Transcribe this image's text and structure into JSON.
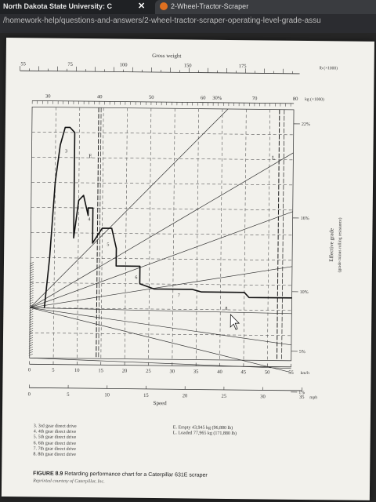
{
  "browser": {
    "tab_title": "North Dakota State University: C",
    "tab_close": "✕",
    "tab2_title": "2-Wheel-Tractor-Scraper",
    "url": "/homework-help/questions-and-answers/2-wheel-tractor-scraper-operating-level-grade-assu"
  },
  "chart_data": {
    "type": "line",
    "title": "Gross weight",
    "top_axis_lb": {
      "ticks": [
        "55",
        "75",
        "100",
        "150",
        "175"
      ],
      "unit": "lb (×1000)"
    },
    "top_axis_kg": {
      "ticks": [
        "30",
        "40",
        "50",
        "60",
        "70",
        "80"
      ],
      "unit": "kg (×1000)",
      "extra": "30%"
    },
    "grade_labels": [
      "22%",
      "16%",
      "10%",
      "5%",
      "1%"
    ],
    "right_axis_label": "Effective grade",
    "right_axis_sublabel": "(grade minus rolling resistance)",
    "x_kmh": {
      "ticks": [
        "0",
        "5",
        "10",
        "15",
        "20",
        "25",
        "30",
        "35",
        "40",
        "45",
        "50",
        "55"
      ],
      "unit": "km/h"
    },
    "x_mph": {
      "ticks": [
        "0",
        "5",
        "10",
        "15",
        "20",
        "25",
        "30",
        "35"
      ],
      "unit": "mph"
    },
    "xlabel": "Speed",
    "markers": [
      "E",
      "L"
    ],
    "gear_labels": [
      "3",
      "4",
      "5",
      "6",
      "7",
      "8"
    ],
    "curve_kmh": [
      [
        3,
        20
      ],
      [
        4,
        40
      ],
      [
        5,
        70
      ],
      [
        6,
        85
      ],
      [
        7,
        92
      ],
      [
        8,
        92
      ],
      [
        9,
        90
      ],
      [
        9,
        48
      ],
      [
        10,
        63
      ],
      [
        11,
        65
      ],
      [
        12,
        57
      ],
      [
        12,
        60
      ],
      [
        13,
        60
      ],
      [
        13,
        46
      ],
      [
        15,
        52
      ],
      [
        17,
        52
      ],
      [
        18,
        44
      ],
      [
        18,
        37
      ],
      [
        23,
        37
      ],
      [
        23,
        30
      ],
      [
        26,
        28
      ],
      [
        34,
        28
      ],
      [
        36,
        27
      ],
      [
        38,
        27
      ],
      [
        45,
        27
      ],
      [
        46,
        25
      ],
      [
        55,
        25
      ]
    ]
  },
  "legend": {
    "left": [
      "3. 3rd gear direct drive",
      "4. 4th gear direct drive",
      "5. 5th gear direct drive",
      "6. 6th gear direct drive",
      "7. 7th gear direct drive",
      "8. 8th gear direct drive"
    ],
    "right": [
      "E. Empty 43,945 kg (96,880 lb)",
      "L. Loaded 77,965 kg (171,880 lb)"
    ]
  },
  "caption": {
    "figure": "FIGURE 8.9",
    "text": "Retarding performance chart for a Caterpillar 631E scraper",
    "credit": "Reprinted courtesy of Caterpillar, Inc."
  }
}
